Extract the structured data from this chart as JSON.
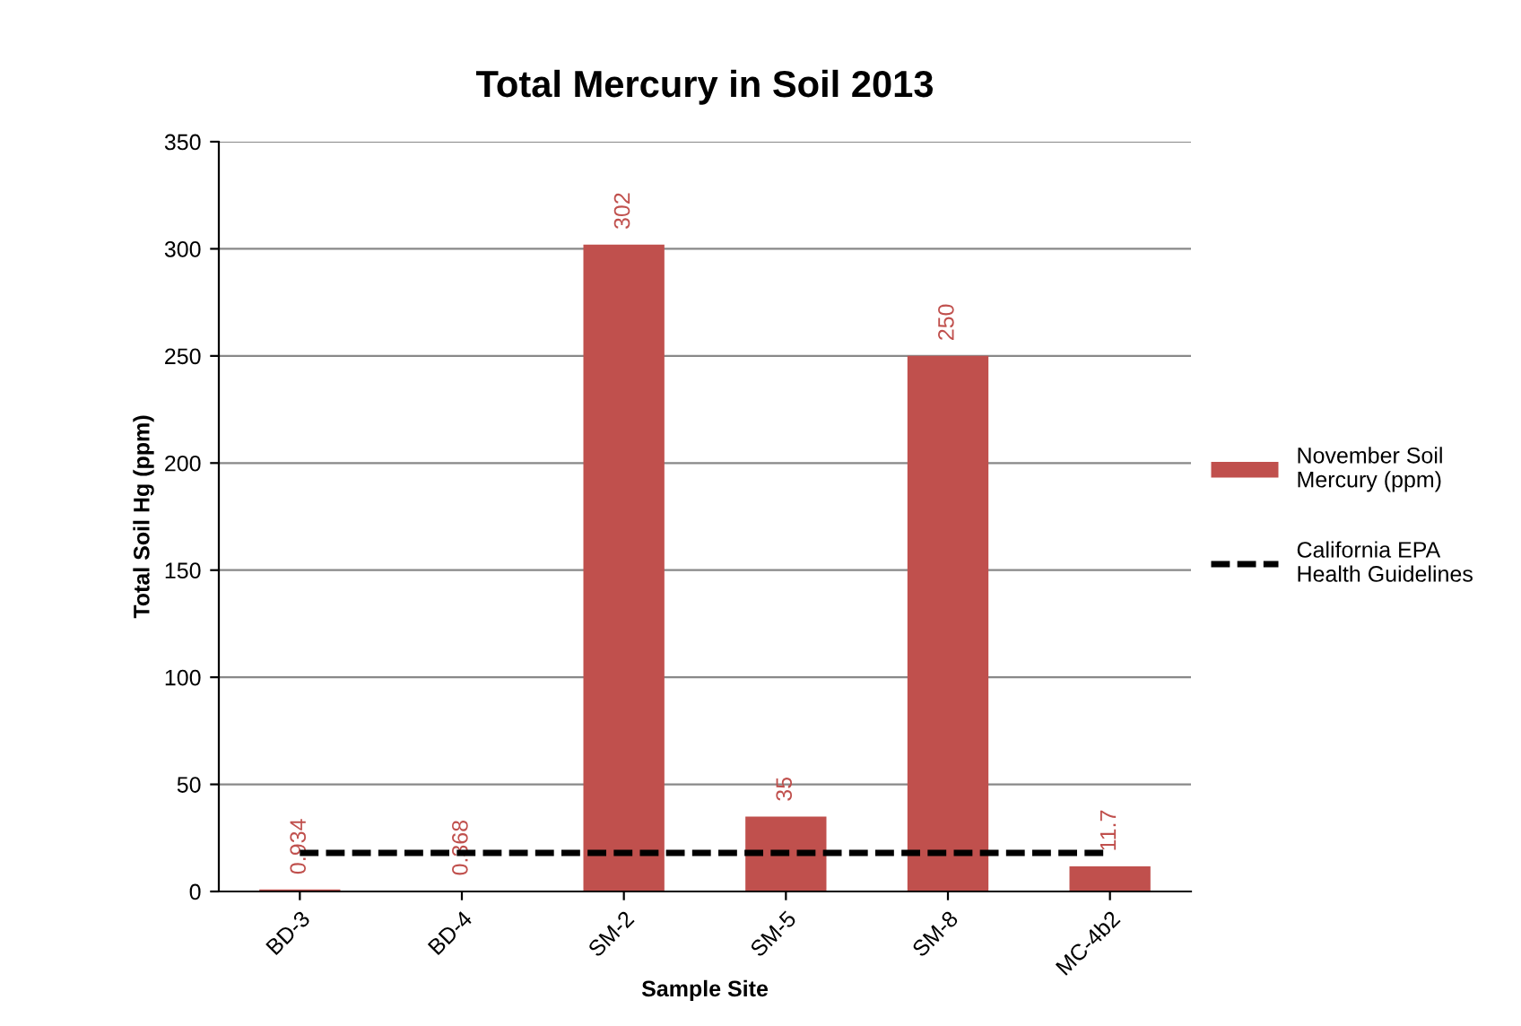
{
  "chart_data": {
    "type": "bar",
    "title": "Total Mercury in Soil 2013",
    "xlabel": "Sample Site",
    "ylabel": "Total Soil Hg (ppm)",
    "categories": [
      "BD-3",
      "BD-4",
      "SM-2",
      "SM-5",
      "SM-8",
      "MC-4b2"
    ],
    "series": [
      {
        "name": "November Soil Mercury (ppm)",
        "color": "#c0504d",
        "values": [
          0.934,
          0.368,
          302,
          35,
          250,
          11.7
        ],
        "data_labels": true
      },
      {
        "name": "California EPA Health Guidelines",
        "type": "line",
        "color": "#000000",
        "line_style": "dashed",
        "marker": "none",
        "values": [
          18,
          18,
          18,
          18,
          18,
          18
        ]
      }
    ],
    "ylim": [
      0,
      350
    ],
    "yticks": [
      0,
      50,
      100,
      150,
      200,
      250,
      300,
      350
    ],
    "grid": "y",
    "legend": "right"
  }
}
